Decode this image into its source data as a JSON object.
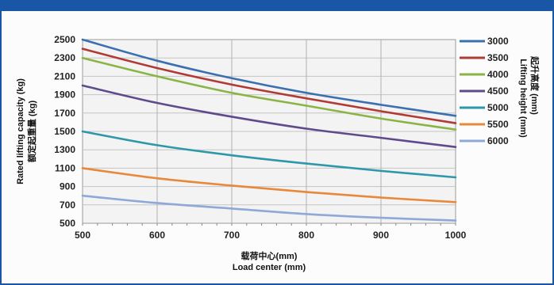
{
  "chart_data": {
    "type": "line",
    "x": [
      500,
      600,
      700,
      800,
      900,
      1000
    ],
    "xlim": [
      500,
      1000
    ],
    "ylim": [
      500,
      2500
    ],
    "x_ticks": [
      500,
      600,
      700,
      800,
      900,
      1000
    ],
    "y_ticks": [
      500,
      700,
      900,
      1100,
      1300,
      1500,
      1700,
      1900,
      2100,
      2300,
      2500
    ],
    "grid": true,
    "xlabel_cn": "载荷中心(mm)",
    "xlabel": "Load center (mm)",
    "ylabel_cn": "额定起重量 (kg)",
    "ylabel": "Rated lifting capacity (kg)",
    "legend_title_cn": "起升高度 (mm)",
    "legend_title": "Lifting height (mm)",
    "legend_position": "right",
    "series": [
      {
        "name": "3000",
        "color": "#3a6fb0",
        "values": [
          2500,
          2270,
          2080,
          1920,
          1790,
          1670
        ]
      },
      {
        "name": "3500",
        "color": "#b03a35",
        "values": [
          2400,
          2190,
          2010,
          1860,
          1720,
          1590
        ]
      },
      {
        "name": "4000",
        "color": "#8ab446",
        "values": [
          2300,
          2100,
          1920,
          1780,
          1640,
          1520
        ]
      },
      {
        "name": "4500",
        "color": "#5e4b8c",
        "values": [
          2000,
          1810,
          1660,
          1530,
          1430,
          1330
        ]
      },
      {
        "name": "5000",
        "color": "#2e97aa",
        "values": [
          1500,
          1350,
          1240,
          1150,
          1070,
          1000
        ]
      },
      {
        "name": "5500",
        "color": "#e8883a",
        "values": [
          1100,
          990,
          910,
          840,
          780,
          730
        ]
      },
      {
        "name": "6000",
        "color": "#8ea8d8",
        "values": [
          800,
          720,
          660,
          600,
          560,
          530
        ]
      }
    ]
  }
}
